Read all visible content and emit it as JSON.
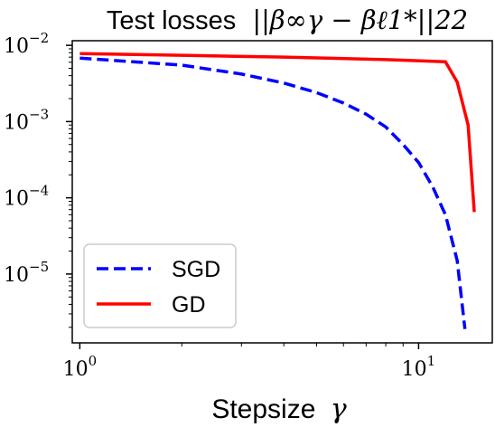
{
  "chart_data": {
    "type": "line",
    "title": {
      "prefix": "Test losses",
      "math": "||β∞γ − βℓ1*||22"
    },
    "xlabel": {
      "prefix": "Stepsize",
      "math": "γ"
    },
    "ylabel": "",
    "xscale": "log",
    "yscale": "log",
    "xlim": [
      0.95,
      16.5
    ],
    "ylim": [
      1.25e-06,
      0.0115
    ],
    "grid": false,
    "legend_position": "lower-left",
    "xticks": [
      {
        "value": 1,
        "base": "10",
        "exp": "0"
      },
      {
        "value": 10,
        "base": "10",
        "exp": "1"
      }
    ],
    "yticks": [
      {
        "value": 1e-05,
        "base": "10",
        "exp": "−5"
      },
      {
        "value": 0.0001,
        "base": "10",
        "exp": "−4"
      },
      {
        "value": 0.001,
        "base": "10",
        "exp": "−3"
      },
      {
        "value": 0.01,
        "base": "10",
        "exp": "−2"
      }
    ],
    "series": [
      {
        "name": "SGD",
        "color": "#0000ff",
        "style": "dashed",
        "x": [
          1.0,
          2.0,
          3.0,
          4.0,
          5.0,
          6.0,
          7.0,
          8.0,
          9.0,
          10.0,
          11.0,
          12.0,
          13.0,
          13.7
        ],
        "y": [
          0.0068,
          0.0055,
          0.0042,
          0.0032,
          0.0024,
          0.00175,
          0.00125,
          0.00085,
          0.0005,
          0.00029,
          0.00014,
          6e-05,
          1.5e-05,
          1.9e-06
        ]
      },
      {
        "name": "GD",
        "color": "#ff0000",
        "style": "solid",
        "x": [
          1.0,
          2.0,
          4.0,
          8.0,
          12.0,
          13.0,
          14.0,
          14.6
        ],
        "y": [
          0.0078,
          0.0074,
          0.007,
          0.0065,
          0.0061,
          0.0033,
          0.0009,
          6.5e-05
        ]
      }
    ]
  }
}
